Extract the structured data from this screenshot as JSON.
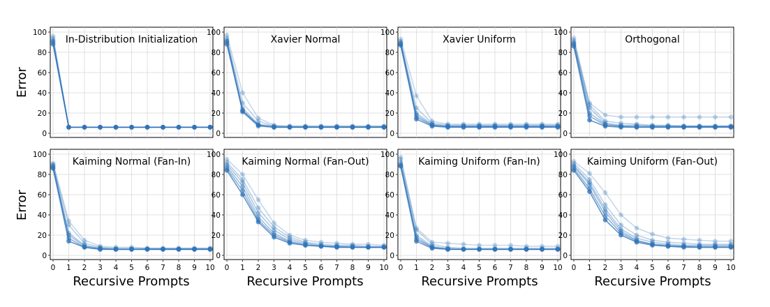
{
  "figure": {
    "ylabel": "Error",
    "xlabel": "Recursive Prompts",
    "series_color": "#2f73b8"
  },
  "chart_data": [
    {
      "type": "line",
      "title": "In-Distribution Initialization",
      "xlabel": "Recursive Prompts",
      "ylabel": "Error",
      "x": [
        0,
        1,
        2,
        3,
        4,
        5,
        6,
        7,
        8,
        9,
        10
      ],
      "xlim": [
        0,
        10
      ],
      "ylim": [
        0,
        100
      ],
      "yticks": [
        0,
        20,
        40,
        60,
        80,
        100
      ],
      "grid": true,
      "series": [
        {
          "values": [
            96,
            6,
            6,
            6,
            6,
            6,
            6,
            6,
            6,
            6,
            6
          ]
        },
        {
          "values": [
            94,
            6,
            6,
            6,
            6,
            6,
            6,
            6,
            6,
            6,
            6
          ]
        },
        {
          "values": [
            92,
            6,
            6,
            6,
            6,
            6,
            6,
            6,
            6,
            6,
            6
          ]
        },
        {
          "values": [
            91,
            6,
            6,
            6,
            6,
            6,
            6,
            6,
            6,
            6,
            6
          ]
        },
        {
          "values": [
            90,
            6,
            6,
            6,
            6,
            6,
            6,
            6,
            6,
            6,
            6
          ]
        },
        {
          "values": [
            88,
            6,
            6,
            6,
            6,
            6,
            6,
            6,
            6,
            6,
            6
          ]
        }
      ]
    },
    {
      "type": "line",
      "title": "Xavier Normal",
      "xlabel": "Recursive Prompts",
      "ylabel": "",
      "x": [
        0,
        1,
        2,
        3,
        4,
        5,
        6,
        7,
        8,
        9,
        10
      ],
      "xlim": [
        0,
        10
      ],
      "ylim": [
        0,
        100
      ],
      "yticks": [
        0,
        20,
        40,
        60,
        80,
        100
      ],
      "grid": true,
      "series": [
        {
          "values": [
            97,
            40,
            15,
            8,
            7,
            7,
            7,
            7,
            7,
            7,
            7
          ]
        },
        {
          "values": [
            94,
            30,
            12,
            7,
            7,
            7,
            7,
            7,
            7,
            7,
            7
          ]
        },
        {
          "values": [
            92,
            25,
            9,
            7,
            6,
            6,
            6,
            6,
            6,
            6,
            6
          ]
        },
        {
          "values": [
            91,
            23,
            8,
            6,
            6,
            6,
            6,
            6,
            6,
            6,
            6
          ]
        },
        {
          "values": [
            90,
            21,
            7,
            6,
            6,
            6,
            6,
            6,
            6,
            6,
            6
          ]
        },
        {
          "values": [
            88,
            22,
            8,
            6,
            6,
            6,
            6,
            6,
            6,
            6,
            6
          ]
        }
      ]
    },
    {
      "type": "line",
      "title": "Xavier Uniform",
      "xlabel": "Recursive Prompts",
      "ylabel": "",
      "x": [
        0,
        1,
        2,
        3,
        4,
        5,
        6,
        7,
        8,
        9,
        10
      ],
      "xlim": [
        0,
        10
      ],
      "ylim": [
        0,
        100
      ],
      "yticks": [
        0,
        20,
        40,
        60,
        80,
        100
      ],
      "grid": true,
      "series": [
        {
          "values": [
            93,
            37,
            12,
            9,
            9,
            9,
            9,
            9,
            9,
            9,
            9
          ]
        },
        {
          "values": [
            91,
            25,
            10,
            8,
            8,
            8,
            8,
            8,
            8,
            8,
            8
          ]
        },
        {
          "values": [
            90,
            20,
            9,
            7,
            7,
            7,
            7,
            7,
            7,
            7,
            7
          ]
        },
        {
          "values": [
            89,
            18,
            8,
            6,
            6,
            6,
            6,
            6,
            6,
            6,
            6
          ]
        },
        {
          "values": [
            88,
            16,
            8,
            7,
            7,
            7,
            7,
            7,
            7,
            7,
            7
          ]
        },
        {
          "values": [
            87,
            14,
            7,
            6,
            6,
            6,
            6,
            6,
            6,
            6,
            6
          ]
        }
      ]
    },
    {
      "type": "line",
      "title": "Orthogonal",
      "xlabel": "Recursive Prompts",
      "ylabel": "",
      "x": [
        0,
        1,
        2,
        3,
        4,
        5,
        6,
        7,
        8,
        9,
        10
      ],
      "xlim": [
        0,
        10
      ],
      "ylim": [
        0,
        100
      ],
      "yticks": [
        0,
        20,
        40,
        60,
        80,
        100
      ],
      "grid": true,
      "series": [
        {
          "values": [
            94,
            30,
            18,
            16,
            16,
            16,
            16,
            16,
            16,
            16,
            16
          ]
        },
        {
          "values": [
            92,
            28,
            12,
            10,
            9,
            8,
            8,
            7,
            7,
            7,
            7
          ]
        },
        {
          "values": [
            90,
            25,
            10,
            8,
            8,
            7,
            7,
            7,
            7,
            7,
            7
          ]
        },
        {
          "values": [
            89,
            20,
            9,
            7,
            7,
            7,
            7,
            7,
            7,
            7,
            7
          ]
        },
        {
          "values": [
            88,
            17,
            8,
            7,
            6,
            6,
            6,
            6,
            6,
            6,
            6
          ]
        },
        {
          "values": [
            86,
            13,
            7,
            6,
            6,
            6,
            6,
            6,
            6,
            6,
            6
          ]
        }
      ]
    },
    {
      "type": "line",
      "title": "Kaiming Normal (Fan-In)",
      "xlabel": "Recursive Prompts",
      "ylabel": "Error",
      "x": [
        0,
        1,
        2,
        3,
        4,
        5,
        6,
        7,
        8,
        9,
        10
      ],
      "xlim": [
        0,
        10
      ],
      "ylim": [
        0,
        100
      ],
      "yticks": [
        0,
        20,
        40,
        60,
        80,
        100
      ],
      "grid": true,
      "series": [
        {
          "values": [
            91,
            34,
            15,
            9,
            8,
            8,
            7,
            7,
            7,
            7,
            7
          ]
        },
        {
          "values": [
            90,
            30,
            12,
            8,
            7,
            7,
            7,
            7,
            7,
            7,
            7
          ]
        },
        {
          "values": [
            89,
            22,
            10,
            7,
            6,
            6,
            6,
            6,
            6,
            6,
            6
          ]
        },
        {
          "values": [
            88,
            20,
            9,
            7,
            6,
            6,
            6,
            6,
            6,
            6,
            6
          ]
        },
        {
          "values": [
            87,
            17,
            8,
            6,
            6,
            6,
            6,
            6,
            6,
            6,
            6
          ]
        },
        {
          "values": [
            86,
            14,
            8,
            6,
            6,
            6,
            6,
            6,
            6,
            6,
            6
          ]
        }
      ]
    },
    {
      "type": "line",
      "title": "Kaiming Normal (Fan-Out)",
      "xlabel": "Recursive Prompts",
      "ylabel": "",
      "x": [
        0,
        1,
        2,
        3,
        4,
        5,
        6,
        7,
        8,
        9,
        10
      ],
      "xlim": [
        0,
        10
      ],
      "ylim": [
        0,
        100
      ],
      "yticks": [
        0,
        20,
        40,
        60,
        80,
        100
      ],
      "grid": true,
      "series": [
        {
          "values": [
            95,
            80,
            55,
            32,
            20,
            15,
            13,
            12,
            11,
            11,
            10
          ]
        },
        {
          "values": [
            92,
            75,
            47,
            28,
            18,
            13,
            11,
            10,
            10,
            9,
            9
          ]
        },
        {
          "values": [
            90,
            72,
            42,
            25,
            16,
            12,
            10,
            9,
            9,
            8,
            8
          ]
        },
        {
          "values": [
            88,
            68,
            38,
            22,
            14,
            11,
            9,
            9,
            8,
            8,
            8
          ]
        },
        {
          "values": [
            86,
            64,
            35,
            20,
            13,
            10,
            9,
            8,
            8,
            8,
            8
          ]
        },
        {
          "values": [
            84,
            60,
            33,
            18,
            12,
            10,
            9,
            8,
            8,
            8,
            8
          ]
        }
      ]
    },
    {
      "type": "line",
      "title": "Kaiming Uniform (Fan-In)",
      "xlabel": "Recursive Prompts",
      "ylabel": "",
      "x": [
        0,
        1,
        2,
        3,
        4,
        5,
        6,
        7,
        8,
        9,
        10
      ],
      "xlim": [
        0,
        10
      ],
      "ylim": [
        0,
        100
      ],
      "yticks": [
        0,
        20,
        40,
        60,
        80,
        100
      ],
      "grid": true,
      "series": [
        {
          "values": [
            97,
            27,
            13,
            12,
            11,
            10,
            10,
            10,
            9,
            9,
            9
          ]
        },
        {
          "values": [
            95,
            25,
            11,
            8,
            7,
            7,
            7,
            7,
            7,
            7,
            7
          ]
        },
        {
          "values": [
            92,
            20,
            9,
            7,
            6,
            6,
            6,
            6,
            6,
            6,
            6
          ]
        },
        {
          "values": [
            90,
            18,
            8,
            6,
            6,
            6,
            6,
            6,
            6,
            6,
            6
          ]
        },
        {
          "values": [
            89,
            16,
            8,
            6,
            6,
            6,
            6,
            6,
            6,
            6,
            6
          ]
        },
        {
          "values": [
            88,
            14,
            7,
            6,
            6,
            6,
            6,
            6,
            6,
            6,
            6
          ]
        }
      ]
    },
    {
      "type": "line",
      "title": "Kaiming Uniform (Fan-Out)",
      "xlabel": "Recursive Prompts",
      "ylabel": "",
      "x": [
        0,
        1,
        2,
        3,
        4,
        5,
        6,
        7,
        8,
        9,
        10
      ],
      "xlim": [
        0,
        10
      ],
      "ylim": [
        0,
        100
      ],
      "yticks": [
        0,
        20,
        40,
        60,
        80,
        100
      ],
      "grid": true,
      "series": [
        {
          "values": [
            93,
            81,
            62,
            40,
            27,
            21,
            17,
            16,
            15,
            14,
            14
          ]
        },
        {
          "values": [
            91,
            75,
            50,
            30,
            20,
            15,
            13,
            12,
            11,
            11,
            11
          ]
        },
        {
          "values": [
            89,
            72,
            46,
            26,
            17,
            13,
            11,
            10,
            10,
            10,
            10
          ]
        },
        {
          "values": [
            88,
            70,
            43,
            24,
            15,
            11,
            10,
            9,
            9,
            9,
            9
          ]
        },
        {
          "values": [
            86,
            66,
            39,
            22,
            14,
            11,
            9,
            9,
            8,
            8,
            8
          ]
        },
        {
          "values": [
            84,
            63,
            35,
            20,
            13,
            10,
            9,
            8,
            8,
            8,
            8
          ]
        }
      ]
    }
  ]
}
